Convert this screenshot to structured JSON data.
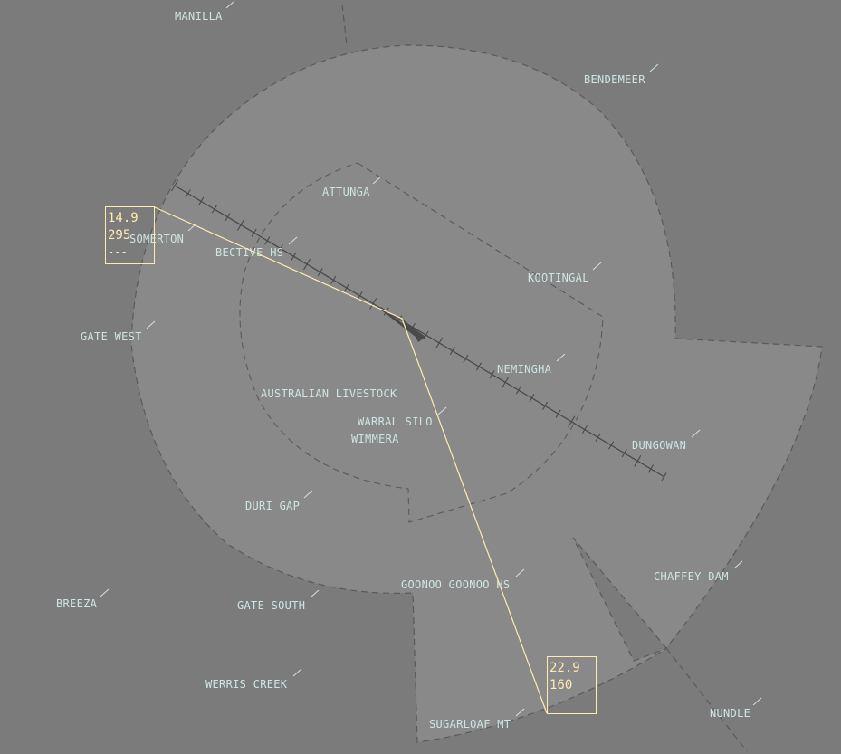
{
  "colors": {
    "background": "#7b7b7b",
    "airspace_fill": "#898989",
    "airspace_border": "#5a5a5a",
    "runway": "#4a4a4a",
    "label": "#cfe4e4",
    "leader": "#ffeab0"
  },
  "fixes": [
    {
      "id": "manilla",
      "label": "MANILLA"
    },
    {
      "id": "bendemeer",
      "label": "BENDEMEER"
    },
    {
      "id": "attunga",
      "label": "ATTUNGA"
    },
    {
      "id": "somerton",
      "label": "SOMERTON"
    },
    {
      "id": "bective-hs",
      "label": "BECTIVE HS"
    },
    {
      "id": "kootingal",
      "label": "KOOTINGAL"
    },
    {
      "id": "gate-west",
      "label": "GATE WEST"
    },
    {
      "id": "nemingha",
      "label": "NEMINGHA"
    },
    {
      "id": "australian-livestock",
      "label": "AUSTRALIAN LIVESTOCK"
    },
    {
      "id": "warral-silo",
      "label": "WARRAL SILO"
    },
    {
      "id": "wimmera",
      "label": "WIMMERA"
    },
    {
      "id": "dungowan",
      "label": "DUNGOWAN"
    },
    {
      "id": "duri-gap",
      "label": "DURI GAP"
    },
    {
      "id": "chaffey-dam",
      "label": "CHAFFEY DAM"
    },
    {
      "id": "goonoo-goonoo-hs",
      "label": "GOONOO GOONOO HS"
    },
    {
      "id": "breeza",
      "label": "BREEZA"
    },
    {
      "id": "gate-south",
      "label": "GATE SOUTH"
    },
    {
      "id": "werris-creek",
      "label": "WERRIS CREEK"
    },
    {
      "id": "nundle",
      "label": "NUNDLE"
    },
    {
      "id": "sugarloaf-mt",
      "label": "SUGARLOAF MT"
    }
  ],
  "measurements": [
    {
      "id": "west",
      "distance": "14.9",
      "bearing": "295",
      "extra": "---"
    },
    {
      "id": "south",
      "distance": "22.9",
      "bearing": "160",
      "extra": "---"
    }
  ]
}
